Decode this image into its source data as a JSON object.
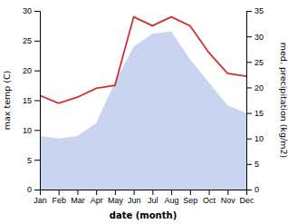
{
  "chart_data": {
    "type": "line",
    "categories": [
      "Jan",
      "Feb",
      "Mar",
      "Apr",
      "May",
      "Jun",
      "Jul",
      "Aug",
      "Sep",
      "Oct",
      "Nov",
      "Dec"
    ],
    "series": [
      {
        "name": "med. precipitation (kg/m2)",
        "type": "area",
        "axis": "y2",
        "color": "#c8d4f0",
        "values": [
          10.5,
          10.0,
          10.5,
          13.0,
          21.0,
          28.0,
          30.5,
          31.0,
          25.5,
          21.0,
          16.5,
          15.0
        ]
      },
      {
        "name": "max temp (C)",
        "type": "line",
        "color": "#cc3333",
        "values": [
          15.8,
          14.5,
          15.5,
          17.0,
          17.5,
          29.0,
          27.5,
          29.0,
          27.5,
          23.0,
          19.5,
          19.0
        ]
      }
    ],
    "x_label": "date (month)",
    "y_label": "max temp (C)",
    "y2_label": "med. precipitation (kg/m2)",
    "ylim": [
      0,
      30
    ],
    "yticks": [
      0,
      5,
      10,
      15,
      20,
      25,
      30
    ],
    "y2lim": [
      0,
      35
    ],
    "y2ticks": [
      0,
      5,
      10,
      15,
      20,
      25,
      30,
      35
    ],
    "grid": false
  }
}
